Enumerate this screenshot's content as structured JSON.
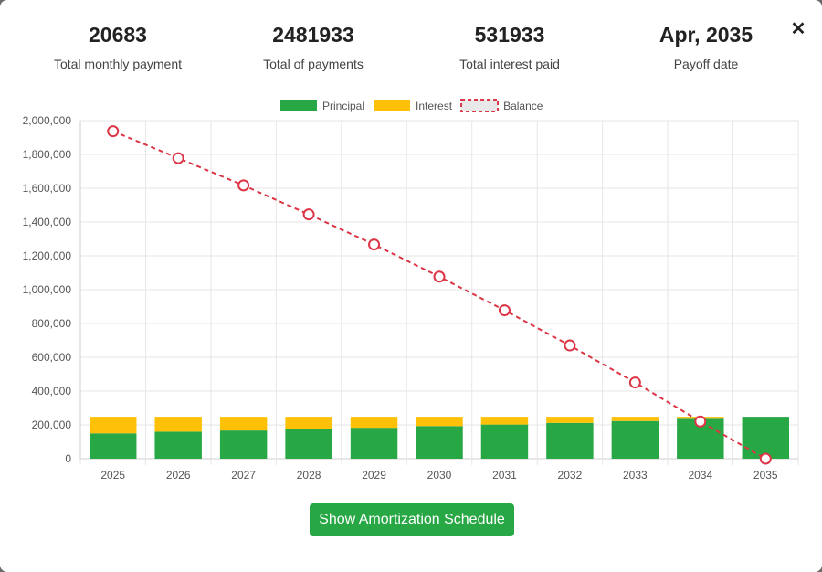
{
  "summary": {
    "monthly_payment": {
      "value": "20683",
      "label": "Total monthly payment"
    },
    "total_payments": {
      "value": "2481933",
      "label": "Total of payments"
    },
    "total_interest": {
      "value": "531933",
      "label": "Total interest paid"
    },
    "payoff_date": {
      "value": "Apr, 2035",
      "label": "Payoff date"
    }
  },
  "close_icon": "close-icon",
  "button": {
    "label": "Show Amortization Schedule"
  },
  "chart_data": {
    "type": "bar",
    "stacked": true,
    "categories": [
      "2025",
      "2026",
      "2027",
      "2028",
      "2029",
      "2030",
      "2031",
      "2032",
      "2033",
      "2034",
      "2035"
    ],
    "series": [
      {
        "name": "Principal",
        "type": "bar",
        "color": "#28a745",
        "values": [
          150000,
          160000,
          167000,
          175000,
          183000,
          193000,
          202000,
          212000,
          223000,
          236000,
          248000
        ]
      },
      {
        "name": "Interest",
        "type": "bar",
        "color": "#ffc107",
        "values": [
          98000,
          88000,
          81000,
          73000,
          65000,
          55000,
          46000,
          36000,
          25000,
          12000,
          0
        ]
      },
      {
        "name": "Balance",
        "type": "line",
        "color": "#dc3545",
        "dashed": true,
        "values": [
          1937000,
          1778000,
          1617000,
          1445000,
          1267000,
          1077000,
          878000,
          670000,
          451000,
          220000,
          0
        ]
      }
    ],
    "yticks": [
      0,
      200000,
      400000,
      600000,
      800000,
      1000000,
      1200000,
      1400000,
      1600000,
      1800000,
      2000000
    ],
    "ylim": [
      0,
      2000000
    ],
    "grid": true,
    "legend_position": "top"
  }
}
